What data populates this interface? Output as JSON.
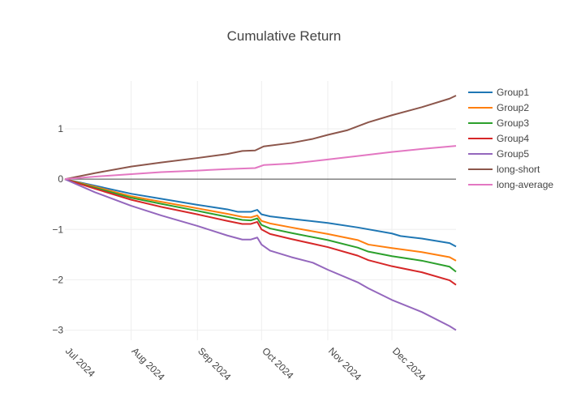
{
  "chart_data": {
    "type": "line",
    "title": "Cumulative Return",
    "xlabel": "",
    "ylabel": "",
    "x_range": [
      "2024-07-01",
      "2024-12-31"
    ],
    "ylim": [
      -3.2,
      1.95
    ],
    "x_ticks": [
      {
        "date": "2024-07-01",
        "label": "Jul 2024"
      },
      {
        "date": "2024-08-01",
        "label": "Aug 2024"
      },
      {
        "date": "2024-09-01",
        "label": "Sep 2024"
      },
      {
        "date": "2024-10-01",
        "label": "Oct 2024"
      },
      {
        "date": "2024-11-01",
        "label": "Nov 2024"
      },
      {
        "date": "2024-12-01",
        "label": "Dec 2024"
      }
    ],
    "y_ticks": [
      {
        "value": 1,
        "label": "1"
      },
      {
        "value": 0,
        "label": "0"
      },
      {
        "value": -1,
        "label": "−1"
      },
      {
        "value": -2,
        "label": "−2"
      },
      {
        "value": -3,
        "label": "−3"
      }
    ],
    "grid": true,
    "legend_position": "top-right",
    "series": [
      {
        "name": "Group1",
        "color": "#1f77b4",
        "points": [
          [
            "2024-07-01",
            0.0
          ],
          [
            "2024-07-15",
            -0.13
          ],
          [
            "2024-08-01",
            -0.29
          ],
          [
            "2024-08-15",
            -0.39
          ],
          [
            "2024-09-01",
            -0.51
          ],
          [
            "2024-09-15",
            -0.6
          ],
          [
            "2024-09-20",
            -0.65
          ],
          [
            "2024-09-26",
            -0.65
          ],
          [
            "2024-09-29",
            -0.61
          ],
          [
            "2024-10-01",
            -0.7
          ],
          [
            "2024-10-05",
            -0.74
          ],
          [
            "2024-10-15",
            -0.79
          ],
          [
            "2024-11-01",
            -0.87
          ],
          [
            "2024-11-15",
            -0.96
          ],
          [
            "2024-12-01",
            -1.08
          ],
          [
            "2024-12-05",
            -1.13
          ],
          [
            "2024-12-15",
            -1.18
          ],
          [
            "2024-12-28",
            -1.27
          ],
          [
            "2024-12-31",
            -1.34
          ]
        ]
      },
      {
        "name": "Group2",
        "color": "#ff7f0e",
        "points": [
          [
            "2024-07-01",
            0.0
          ],
          [
            "2024-07-15",
            -0.15
          ],
          [
            "2024-08-01",
            -0.34
          ],
          [
            "2024-08-15",
            -0.45
          ],
          [
            "2024-09-01",
            -0.58
          ],
          [
            "2024-09-15",
            -0.69
          ],
          [
            "2024-09-22",
            -0.75
          ],
          [
            "2024-09-26",
            -0.76
          ],
          [
            "2024-09-29",
            -0.72
          ],
          [
            "2024-10-01",
            -0.83
          ],
          [
            "2024-10-05",
            -0.88
          ],
          [
            "2024-10-15",
            -0.96
          ],
          [
            "2024-11-01",
            -1.09
          ],
          [
            "2024-11-15",
            -1.21
          ],
          [
            "2024-11-20",
            -1.3
          ],
          [
            "2024-12-01",
            -1.37
          ],
          [
            "2024-12-15",
            -1.45
          ],
          [
            "2024-12-28",
            -1.55
          ],
          [
            "2024-12-31",
            -1.62
          ]
        ]
      },
      {
        "name": "Group3",
        "color": "#2ca02c",
        "points": [
          [
            "2024-07-01",
            0.0
          ],
          [
            "2024-07-15",
            -0.17
          ],
          [
            "2024-08-01",
            -0.37
          ],
          [
            "2024-08-15",
            -0.49
          ],
          [
            "2024-09-01",
            -0.63
          ],
          [
            "2024-09-15",
            -0.75
          ],
          [
            "2024-09-22",
            -0.81
          ],
          [
            "2024-09-26",
            -0.82
          ],
          [
            "2024-09-29",
            -0.78
          ],
          [
            "2024-10-01",
            -0.91
          ],
          [
            "2024-10-05",
            -0.98
          ],
          [
            "2024-10-15",
            -1.07
          ],
          [
            "2024-11-01",
            -1.21
          ],
          [
            "2024-11-15",
            -1.36
          ],
          [
            "2024-11-20",
            -1.44
          ],
          [
            "2024-12-01",
            -1.53
          ],
          [
            "2024-12-15",
            -1.62
          ],
          [
            "2024-12-28",
            -1.74
          ],
          [
            "2024-12-31",
            -1.84
          ]
        ]
      },
      {
        "name": "Group4",
        "color": "#d62728",
        "points": [
          [
            "2024-07-01",
            0.0
          ],
          [
            "2024-07-15",
            -0.19
          ],
          [
            "2024-08-01",
            -0.41
          ],
          [
            "2024-08-15",
            -0.55
          ],
          [
            "2024-09-01",
            -0.7
          ],
          [
            "2024-09-15",
            -0.83
          ],
          [
            "2024-09-22",
            -0.89
          ],
          [
            "2024-09-26",
            -0.89
          ],
          [
            "2024-09-29",
            -0.85
          ],
          [
            "2024-10-01",
            -1.0
          ],
          [
            "2024-10-05",
            -1.09
          ],
          [
            "2024-10-15",
            -1.19
          ],
          [
            "2024-11-01",
            -1.35
          ],
          [
            "2024-11-15",
            -1.52
          ],
          [
            "2024-11-20",
            -1.61
          ],
          [
            "2024-12-01",
            -1.73
          ],
          [
            "2024-12-15",
            -1.85
          ],
          [
            "2024-12-28",
            -2.01
          ],
          [
            "2024-12-31",
            -2.1
          ]
        ]
      },
      {
        "name": "Group5",
        "color": "#9467bd",
        "points": [
          [
            "2024-07-01",
            0.0
          ],
          [
            "2024-07-15",
            -0.26
          ],
          [
            "2024-08-01",
            -0.53
          ],
          [
            "2024-08-15",
            -0.72
          ],
          [
            "2024-09-01",
            -0.93
          ],
          [
            "2024-09-15",
            -1.12
          ],
          [
            "2024-09-22",
            -1.2
          ],
          [
            "2024-09-26",
            -1.2
          ],
          [
            "2024-09-29",
            -1.16
          ],
          [
            "2024-10-01",
            -1.3
          ],
          [
            "2024-10-05",
            -1.42
          ],
          [
            "2024-10-15",
            -1.55
          ],
          [
            "2024-10-25",
            -1.66
          ],
          [
            "2024-11-01",
            -1.8
          ],
          [
            "2024-11-15",
            -2.05
          ],
          [
            "2024-11-20",
            -2.17
          ],
          [
            "2024-12-01",
            -2.4
          ],
          [
            "2024-12-15",
            -2.64
          ],
          [
            "2024-12-28",
            -2.92
          ],
          [
            "2024-12-31",
            -3.0
          ]
        ]
      },
      {
        "name": "long-short",
        "color": "#8c564b",
        "points": [
          [
            "2024-07-01",
            0.0
          ],
          [
            "2024-07-15",
            0.12
          ],
          [
            "2024-08-01",
            0.25
          ],
          [
            "2024-08-15",
            0.33
          ],
          [
            "2024-09-01",
            0.42
          ],
          [
            "2024-09-15",
            0.5
          ],
          [
            "2024-09-22",
            0.56
          ],
          [
            "2024-09-28",
            0.57
          ],
          [
            "2024-10-02",
            0.65
          ],
          [
            "2024-10-15",
            0.72
          ],
          [
            "2024-10-25",
            0.8
          ],
          [
            "2024-11-01",
            0.88
          ],
          [
            "2024-11-10",
            0.97
          ],
          [
            "2024-11-15",
            1.05
          ],
          [
            "2024-11-20",
            1.13
          ],
          [
            "2024-12-01",
            1.27
          ],
          [
            "2024-12-15",
            1.43
          ],
          [
            "2024-12-28",
            1.6
          ],
          [
            "2024-12-31",
            1.66
          ]
        ]
      },
      {
        "name": "long-average",
        "color": "#e377c2",
        "points": [
          [
            "2024-07-01",
            0.0
          ],
          [
            "2024-07-15",
            0.05
          ],
          [
            "2024-08-01",
            0.1
          ],
          [
            "2024-08-15",
            0.14
          ],
          [
            "2024-09-01",
            0.17
          ],
          [
            "2024-09-15",
            0.2
          ],
          [
            "2024-09-28",
            0.22
          ],
          [
            "2024-10-02",
            0.28
          ],
          [
            "2024-10-15",
            0.31
          ],
          [
            "2024-11-01",
            0.39
          ],
          [
            "2024-11-15",
            0.46
          ],
          [
            "2024-12-01",
            0.54
          ],
          [
            "2024-12-15",
            0.6
          ],
          [
            "2024-12-31",
            0.66
          ]
        ]
      }
    ]
  }
}
